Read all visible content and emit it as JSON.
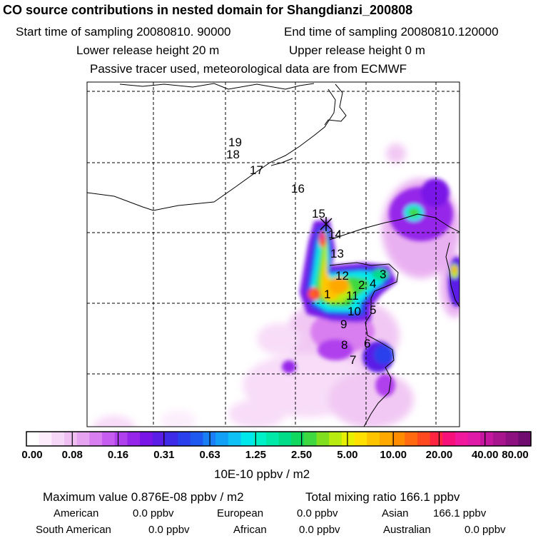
{
  "header": {
    "title": "CO  source contributions in nested domain for Shangdianzi_200808",
    "start_sampling": "Start time of sampling 20080810. 90000",
    "end_sampling": "End time of sampling 20080810.120000",
    "lower_release": "Lower release height   20 m",
    "upper_release": "Upper release height    0 m",
    "note": "Passive tracer used, meteorological data are from ECMWF"
  },
  "chart_data": {
    "type": "heatmap",
    "title": "CO  source contributions in nested domain for Shangdianzi_200808",
    "units": "10E-10 ppbv / m2",
    "colorbar_ticks": [
      "0.00",
      "0.08",
      "0.16",
      "0.31",
      "0.63",
      "1.25",
      "2.50",
      "5.00",
      "10.00",
      "20.00",
      "40.00",
      "80.00"
    ],
    "colorbar_colors": [
      "#ffffff",
      "#fcecfc",
      "#f7d7f7",
      "#efbff2",
      "#e6a3ef",
      "#d97ef0",
      "#c65cf0",
      "#b040ee",
      "#9526ea",
      "#7a15e8",
      "#5a1ee6",
      "#3d2be8",
      "#2a40ec",
      "#1f5af0",
      "#1a7ff4",
      "#12a0f6",
      "#0ec0f6",
      "#00e7ec",
      "#00f0c8",
      "#00e9a8",
      "#00dc88",
      "#10d860",
      "#40d840",
      "#80e020",
      "#b8ec10",
      "#e6f000",
      "#ffe000",
      "#ffc400",
      "#ffa800",
      "#ff8c00",
      "#ff6a10",
      "#ff4a20",
      "#ff2440",
      "#f5107a",
      "#f0189c",
      "#e01aa8",
      "#c4169e",
      "#a8148e",
      "#8c1080",
      "#700c70"
    ],
    "trajectory_labels": [
      "1",
      "2",
      "3",
      "4",
      "5",
      "6",
      "7",
      "8",
      "9",
      "10",
      "11",
      "12",
      "13",
      "14",
      "15",
      "16",
      "17",
      "18",
      "19"
    ],
    "max_value": "0.876E-08 ppbv / m2",
    "total_mixing_ratio": "166.1 ppbv"
  },
  "footer": {
    "max_label": "Maximum value  0.876E-08 ppbv / m2",
    "total_label": "Total mixing ratio      166.1 ppbv",
    "regions": [
      {
        "name": "American",
        "value": "0.0 ppbv"
      },
      {
        "name": "European",
        "value": "0.0 ppbv"
      },
      {
        "name": "Asian",
        "value": "166.1 ppbv"
      },
      {
        "name": "South American",
        "value": "0.0 ppbv"
      },
      {
        "name": "African",
        "value": "0.0 ppbv"
      },
      {
        "name": "Australian",
        "value": "0.0 ppbv"
      }
    ]
  }
}
